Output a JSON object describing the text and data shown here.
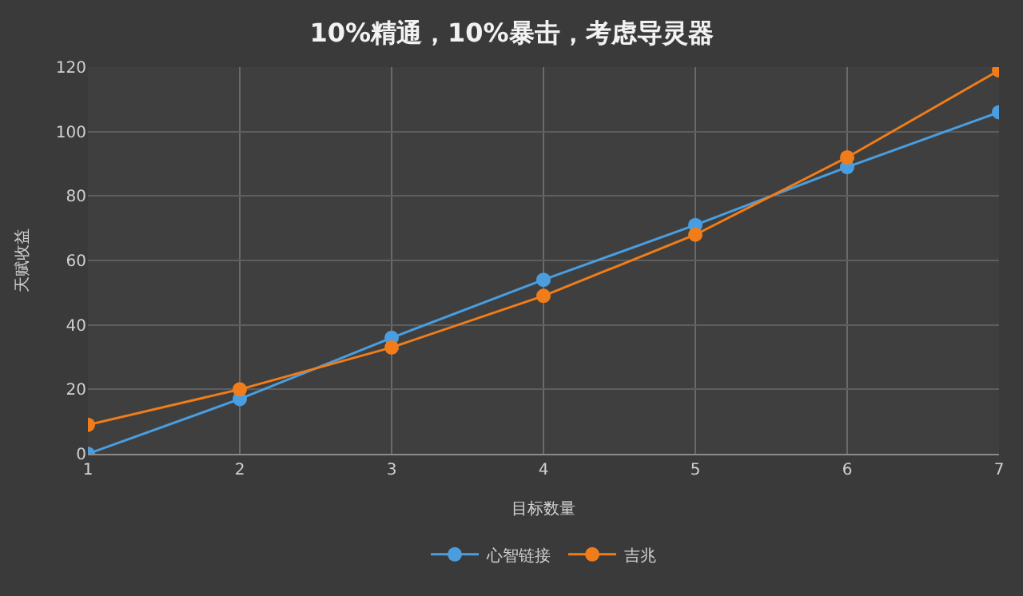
{
  "chart_data": {
    "type": "line",
    "title": "10%精通，10%暴击，考虑导灵器",
    "xlabel": "目标数量",
    "ylabel": "天赋收益",
    "x": [
      1,
      2,
      3,
      4,
      5,
      6,
      7
    ],
    "series": [
      {
        "name": "心智链接",
        "color": "#4a9ee0",
        "values": [
          0,
          17,
          36,
          54,
          71,
          89,
          106
        ]
      },
      {
        "name": "吉兆",
        "color": "#f07d1a",
        "values": [
          9,
          20,
          33,
          49,
          68,
          92,
          119
        ]
      }
    ],
    "xlim": [
      1,
      7
    ],
    "xticks": [
      1,
      2,
      3,
      4,
      5,
      6,
      7
    ],
    "ylim": [
      0,
      120
    ],
    "yticks": [
      0,
      20,
      40,
      60,
      80,
      100,
      120
    ],
    "grid": true,
    "legend": "bottom",
    "marker": "circle",
    "line_style": "solid"
  }
}
